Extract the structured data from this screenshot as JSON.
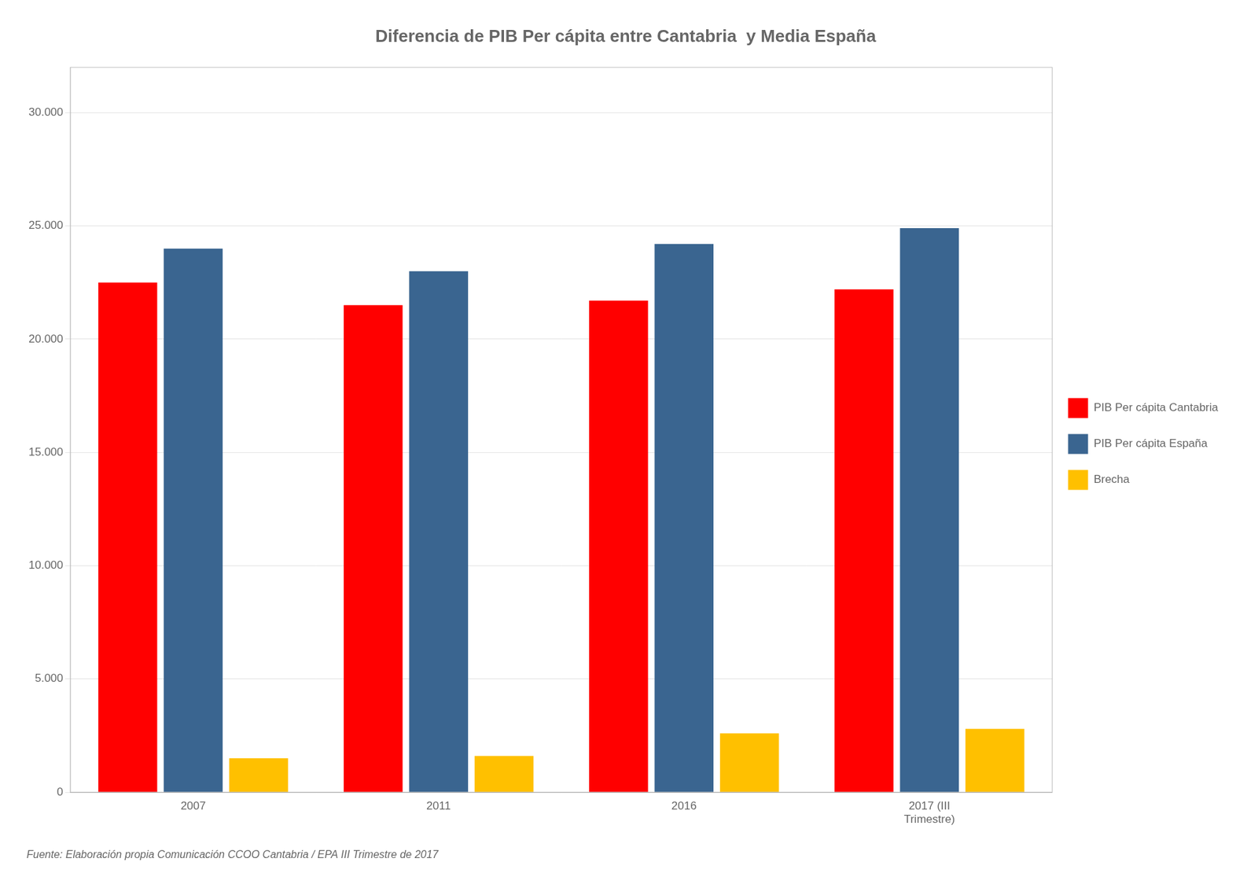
{
  "chart_data": {
    "type": "bar",
    "title": "Diferencia de PIB Per cápita entre Cantabria  y Media España",
    "annotations": [
      "Fuente: Elaboración propia Comunicación CCOO Cantabria / EPA III Trimestre de 2017"
    ],
    "categories": [
      "2007",
      "2011",
      "2016",
      "2017 (III\nTrimestre)"
    ],
    "series": [
      {
        "name": "PIB Per cápita Cantabria",
        "color": "#FF0000",
        "values": [
          22500,
          21500,
          21700,
          22200
        ]
      },
      {
        "name": "PIB Per cápita España",
        "color": "#3A6590",
        "values": [
          24000,
          23000,
          24200,
          24900
        ]
      },
      {
        "name": "Brecha",
        "color": "#FFC000",
        "values": [
          1500,
          1600,
          2600,
          2800
        ]
      }
    ],
    "ylim": [
      0,
      32000
    ],
    "yticks": [
      0,
      {
        "value": 5000,
        "label": "5.000"
      },
      {
        "value": 10000,
        "label": "10.000"
      },
      {
        "value": 15000,
        "label": "15.000"
      },
      {
        "value": 20000,
        "label": "20.000"
      },
      {
        "value": 25000,
        "label": "25.000"
      },
      {
        "value": 30000,
        "label": "30.000"
      }
    ],
    "grid": true,
    "legend": "right"
  }
}
